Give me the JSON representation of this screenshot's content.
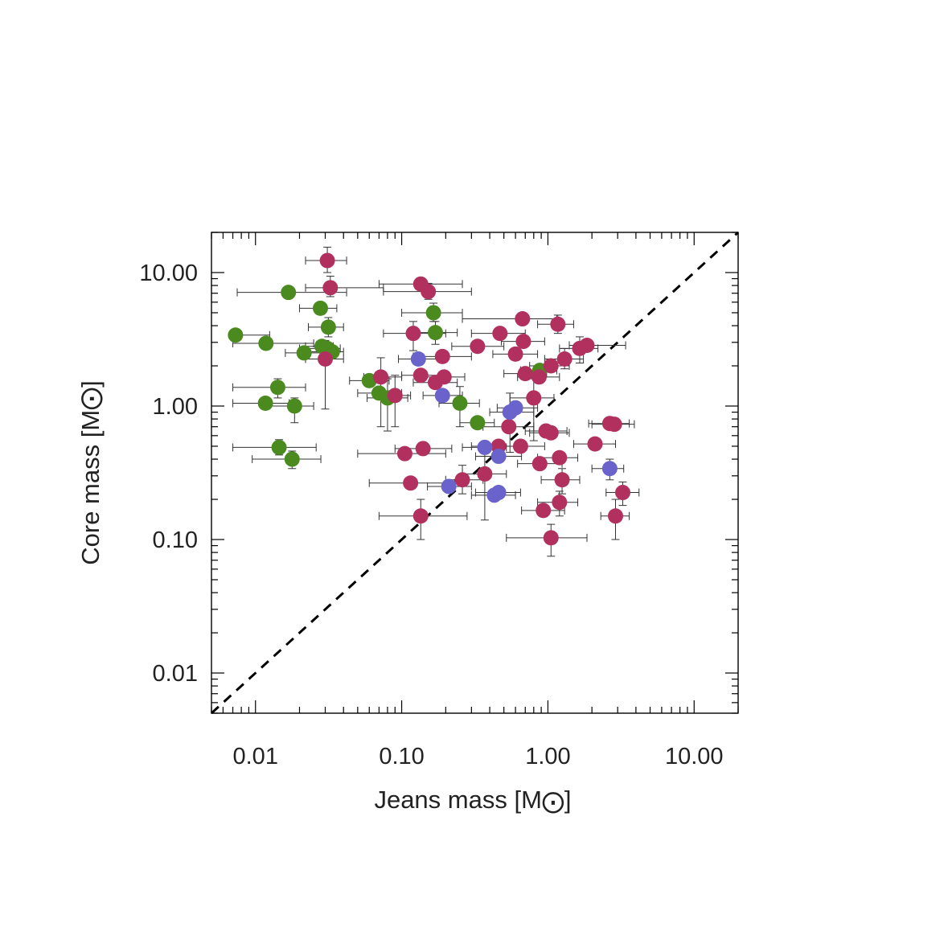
{
  "chart_data": {
    "type": "scatter",
    "xlabel": "Jeans mass [M",
    "ylabel": "Core mass [M",
    "xscale": "log",
    "yscale": "log",
    "xlim": [
      0.005,
      20
    ],
    "ylim": [
      0.005,
      20
    ],
    "xticks": [
      "0.01",
      "0.10",
      "1.00",
      "10.00"
    ],
    "yticks": [
      "0.01",
      "0.10",
      "1.00",
      "10.00"
    ],
    "xtick_values": [
      0.01,
      0.1,
      1,
      10
    ],
    "ytick_values": [
      0.01,
      0.1,
      1,
      10
    ],
    "reference_line": "y = x (dashed)",
    "grid": false,
    "colors": {
      "green": "#4a8a1e",
      "magenta": "#b2305e",
      "blue": "#6a63cc",
      "errorbar": "#333333"
    },
    "series": [
      {
        "color": "green",
        "points": [
          {
            "x": 0.0073,
            "y": 3.4,
            "xerr": [
              0.007,
              0.0125
            ]
          },
          {
            "x": 0.0118,
            "y": 2.95,
            "xerr": [
              0.007,
              0.025
            ]
          },
          {
            "x": 0.0117,
            "y": 1.05,
            "xerr": [
              0.007,
              0.017
            ]
          },
          {
            "x": 0.0142,
            "y": 1.38,
            "xerr": [
              0.007,
              0.022
            ],
            "yerr": [
              1.15,
              1.6
            ]
          },
          {
            "x": 0.0145,
            "y": 0.49,
            "xerr": [
              0.007,
              0.026
            ],
            "yerr": [
              0.43,
              0.56
            ]
          },
          {
            "x": 0.0168,
            "y": 7.1,
            "xerr": [
              0.0075,
              0.042
            ]
          },
          {
            "x": 0.0178,
            "y": 0.4,
            "xerr": [
              0.0095,
              0.028
            ],
            "yerr": [
              0.34,
              0.46
            ]
          },
          {
            "x": 0.0185,
            "y": 1.0,
            "xerr": [
              0.012,
              0.025
            ],
            "yerr": [
              0.75,
              1.15
            ]
          },
          {
            "x": 0.0215,
            "y": 2.5,
            "xerr": [
              0.016,
              0.031
            ]
          },
          {
            "x": 0.0278,
            "y": 5.4,
            "xerr": [
              0.02,
              0.036
            ]
          },
          {
            "x": 0.0285,
            "y": 2.8,
            "xerr": [
              0.022,
              0.034
            ]
          },
          {
            "x": 0.0315,
            "y": 3.9,
            "xerr": [
              0.023,
              0.04
            ],
            "yerr": [
              3.3,
              4.6
            ]
          },
          {
            "x": 0.031,
            "y": 2.7,
            "xerr": [
              0.02,
              0.038
            ]
          },
          {
            "x": 0.0335,
            "y": 2.55,
            "xerr": [
              0.022,
              0.04
            ]
          },
          {
            "x": 0.06,
            "y": 1.55,
            "xerr": [
              0.044,
              0.082
            ]
          },
          {
            "x": 0.07,
            "y": 1.25,
            "xerr": [
              0.05,
              0.1
            ]
          },
          {
            "x": 0.08,
            "y": 1.15,
            "xerr": [
              0.058,
              0.11
            ],
            "yerr": [
              0.65,
              1.6
            ]
          },
          {
            "x": 0.165,
            "y": 5.0,
            "xerr": [
              0.1,
              0.26
            ],
            "yerr": [
              4.3,
              5.9
            ]
          },
          {
            "x": 0.17,
            "y": 3.55,
            "xerr": [
              0.12,
              0.24
            ],
            "yerr": [
              2.9,
              4.3
            ]
          },
          {
            "x": 0.25,
            "y": 1.05,
            "xerr": [
              0.18,
              0.34
            ],
            "yerr": [
              0.7,
              1.4
            ]
          },
          {
            "x": 0.33,
            "y": 0.75,
            "xerr": [
              0.25,
              0.43
            ]
          },
          {
            "x": 0.88,
            "y": 1.85,
            "xerr": [
              0.65,
              1.15
            ]
          }
        ]
      },
      {
        "color": "magenta",
        "points": [
          {
            "x": 0.031,
            "y": 12.3,
            "xerr": [
              0.022,
              0.042
            ],
            "yerr": [
              10.0,
              15.5
            ]
          },
          {
            "x": 0.0325,
            "y": 7.7,
            "xerr": [
              0.022,
              0.075
            ],
            "yerr": [
              6.6,
              9.4
            ]
          },
          {
            "x": 0.03,
            "y": 2.25,
            "xerr": [
              0.022,
              0.04
            ],
            "yerr": [
              0.95,
              3.1
            ]
          },
          {
            "x": 0.072,
            "y": 1.65,
            "xerr": [
              0.055,
              0.1
            ],
            "yerr": [
              0.7,
              2.3
            ]
          },
          {
            "x": 0.09,
            "y": 1.2,
            "xerr": [
              0.07,
              0.115
            ],
            "yerr": [
              0.7,
              1.7
            ]
          },
          {
            "x": 0.105,
            "y": 0.44,
            "xerr": [
              0.05,
              0.2
            ]
          },
          {
            "x": 0.115,
            "y": 0.265,
            "xerr": [
              0.06,
              0.23
            ]
          },
          {
            "x": 0.12,
            "y": 3.5,
            "xerr": [
              0.075,
              0.2
            ],
            "yerr": [
              2.6,
              4.3
            ]
          },
          {
            "x": 0.135,
            "y": 8.2,
            "xerr": [
              0.07,
              0.26
            ],
            "yerr": [
              7.5,
              9.0
            ]
          },
          {
            "x": 0.152,
            "y": 7.2,
            "xerr": [
              0.075,
              0.3
            ],
            "yerr": [
              6.3,
              8.3
            ]
          },
          {
            "x": 0.135,
            "y": 1.7,
            "xerr": [
              0.1,
              0.19
            ]
          },
          {
            "x": 0.135,
            "y": 0.15,
            "xerr": [
              0.07,
              0.28
            ],
            "yerr": [
              0.1,
              0.2
            ]
          },
          {
            "x": 0.14,
            "y": 0.48,
            "xerr": [
              0.09,
              0.22
            ]
          },
          {
            "x": 0.17,
            "y": 1.5,
            "xerr": [
              0.12,
              0.24
            ]
          },
          {
            "x": 0.19,
            "y": 2.35,
            "xerr": [
              0.12,
              0.3
            ]
          },
          {
            "x": 0.195,
            "y": 1.65,
            "xerr": [
              0.14,
              0.27
            ]
          },
          {
            "x": 0.26,
            "y": 0.28,
            "xerr": [
              0.2,
              0.36
            ],
            "yerr": [
              0.22,
              0.36
            ]
          },
          {
            "x": 0.33,
            "y": 2.8,
            "xerr": [
              0.22,
              0.5
            ]
          },
          {
            "x": 0.37,
            "y": 0.31,
            "xerr": [
              0.26,
              0.52
            ],
            "yerr": [
              0.14,
              0.5
            ]
          },
          {
            "x": 0.46,
            "y": 0.5,
            "xerr": [
              0.3,
              0.7
            ]
          },
          {
            "x": 0.47,
            "y": 3.5,
            "xerr": [
              0.3,
              0.7
            ]
          },
          {
            "x": 0.54,
            "y": 0.7,
            "xerr": [
              0.36,
              0.8
            ]
          },
          {
            "x": 0.6,
            "y": 2.45,
            "xerr": [
              0.42,
              0.85
            ]
          },
          {
            "x": 0.65,
            "y": 0.5,
            "xerr": [
              0.45,
              0.95
            ]
          },
          {
            "x": 0.67,
            "y": 4.5,
            "xerr": [
              0.26,
              1.15
            ]
          },
          {
            "x": 0.68,
            "y": 3.05,
            "xerr": [
              0.48,
              0.95
            ]
          },
          {
            "x": 0.7,
            "y": 1.75,
            "xerr": [
              0.5,
              0.98
            ]
          },
          {
            "x": 0.8,
            "y": 1.15,
            "xerr": [
              0.55,
              1.1
            ],
            "yerr": [
              0.55,
              1.6
            ]
          },
          {
            "x": 0.87,
            "y": 1.65,
            "xerr": [
              0.62,
              1.2
            ]
          },
          {
            "x": 0.88,
            "y": 0.37,
            "xerr": [
              0.62,
              1.25
            ]
          },
          {
            "x": 0.93,
            "y": 0.165,
            "xerr": [
              0.66,
              1.3
            ]
          },
          {
            "x": 0.97,
            "y": 0.65,
            "xerr": [
              0.7,
              1.35
            ]
          },
          {
            "x": 1.05,
            "y": 0.63,
            "xerr": [
              0.75,
              1.4
            ]
          },
          {
            "x": 1.05,
            "y": 0.103,
            "xerr": [
              0.52,
              1.85
            ],
            "yerr": [
              0.075,
              0.13
            ]
          },
          {
            "x": 1.05,
            "y": 2.0,
            "xerr": [
              0.75,
              1.4
            ]
          },
          {
            "x": 1.17,
            "y": 4.1,
            "xerr": [
              0.85,
              1.5
            ],
            "yerr": [
              3.5,
              4.8
            ]
          },
          {
            "x": 1.2,
            "y": 0.41,
            "xerr": [
              0.85,
              1.6
            ]
          },
          {
            "x": 1.2,
            "y": 0.19,
            "xerr": [
              0.85,
              1.6
            ],
            "yerr": [
              0.15,
              0.23
            ]
          },
          {
            "x": 1.25,
            "y": 0.28,
            "xerr": [
              0.9,
              1.65
            ],
            "yerr": [
              0.22,
              0.34
            ]
          },
          {
            "x": 1.3,
            "y": 2.25,
            "xerr": [
              0.95,
              1.75
            ],
            "yerr": [
              1.9,
              2.7
            ]
          },
          {
            "x": 1.65,
            "y": 2.7,
            "xerr": [
              1.2,
              2.2
            ],
            "yerr": [
              2.1,
              3.3
            ]
          },
          {
            "x": 1.85,
            "y": 2.85,
            "xerr": [
              1.4,
              3.4
            ]
          },
          {
            "x": 2.1,
            "y": 0.52,
            "xerr": [
              1.5,
              2.9
            ]
          },
          {
            "x": 2.65,
            "y": 0.74,
            "xerr": [
              1.9,
              3.6
            ]
          },
          {
            "x": 2.85,
            "y": 0.73,
            "xerr": [
              2.0,
              3.9
            ]
          },
          {
            "x": 2.9,
            "y": 0.15,
            "xerr": [
              2.3,
              3.6
            ],
            "yerr": [
              0.1,
              0.2
            ]
          },
          {
            "x": 3.25,
            "y": 0.225,
            "xerr": [
              2.5,
              4.2
            ],
            "yerr": [
              0.18,
              0.27
            ]
          }
        ]
      },
      {
        "color": "blue",
        "points": [
          {
            "x": 0.13,
            "y": 2.25,
            "xerr": [
              0.095,
              0.18
            ]
          },
          {
            "x": 0.19,
            "y": 1.2,
            "xerr": [
              0.14,
              0.26
            ]
          },
          {
            "x": 0.21,
            "y": 0.25,
            "xerr": [
              0.15,
              0.3
            ]
          },
          {
            "x": 0.37,
            "y": 0.49,
            "xerr": [
              0.26,
              0.52
            ]
          },
          {
            "x": 0.43,
            "y": 0.215,
            "xerr": [
              0.3,
              0.6
            ]
          },
          {
            "x": 0.46,
            "y": 0.225,
            "xerr": [
              0.32,
              0.65
            ]
          },
          {
            "x": 0.46,
            "y": 0.42,
            "xerr": [
              0.32,
              0.66
            ]
          },
          {
            "x": 0.55,
            "y": 0.9,
            "xerr": [
              0.4,
              0.8
            ],
            "yerr": [
              0.45,
              1.25
            ]
          },
          {
            "x": 0.6,
            "y": 0.97,
            "xerr": [
              0.45,
              0.85
            ]
          },
          {
            "x": 2.65,
            "y": 0.34,
            "xerr": [
              2.0,
              3.3
            ],
            "yerr": [
              0.28,
              0.4
            ]
          }
        ]
      }
    ]
  }
}
